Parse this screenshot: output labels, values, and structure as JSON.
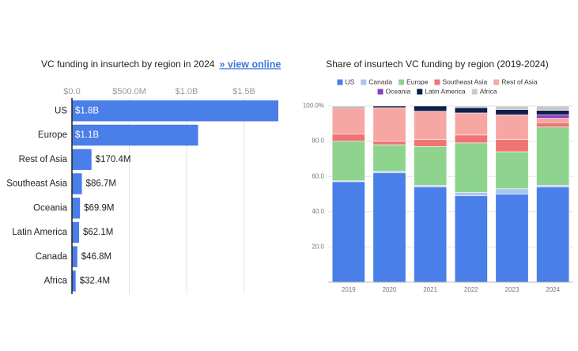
{
  "chart_data": [
    {
      "type": "hbar",
      "title": "VC funding in insurtech by region in 2024",
      "link": "» view online",
      "categories": [
        "US",
        "Europe",
        "Rest of Asia",
        "Southeast Asia",
        "Oceania",
        "Latin America",
        "Canada",
        "Africa"
      ],
      "values": [
        1800000000,
        1100000000,
        170400000,
        86700000,
        69900000,
        62100000,
        46800000,
        32400000
      ],
      "value_labels": [
        "$1.8B",
        "$1.1B",
        "$170.4M",
        "$86.7M",
        "$69.9M",
        "$62.1M",
        "$46.8M",
        "$32.4M"
      ],
      "color": "#4a7ee8",
      "xlim": [
        0,
        1800000000
      ],
      "xticks": [
        {
          "value": 0,
          "label": "$0.0"
        },
        {
          "value": 500000000,
          "label": "$500.0M"
        },
        {
          "value": 1000000000,
          "label": "$1.0B"
        },
        {
          "value": 1500000000,
          "label": "$1.5B"
        }
      ],
      "grid": true
    },
    {
      "type": "stacked_bar",
      "title": "Share of insurtech VC funding by region (2019-2024)",
      "categories": [
        "2019",
        "2020",
        "2021",
        "2022",
        "2023",
        "2024"
      ],
      "series": [
        {
          "name": "US",
          "color": "#4a7ee8",
          "values": [
            57,
            62,
            54,
            49,
            50,
            54
          ]
        },
        {
          "name": "Canada",
          "color": "#a9c5f2",
          "values": [
            0.5,
            1,
            1,
            2,
            3,
            1
          ]
        },
        {
          "name": "Europe",
          "color": "#8ed38e",
          "values": [
            22.5,
            15,
            22,
            28,
            21,
            33
          ]
        },
        {
          "name": "Southeast Asia",
          "color": "#f07474",
          "values": [
            4,
            2,
            4,
            4.5,
            7,
            2.5
          ]
        },
        {
          "name": "Rest of Asia",
          "color": "#f6a7a3",
          "values": [
            15,
            19,
            16,
            12.5,
            14,
            2.5
          ]
        },
        {
          "name": "Oceania",
          "color": "#8b3fc0",
          "values": [
            0,
            0,
            0,
            0,
            0,
            2
          ]
        },
        {
          "name": "Latin America",
          "color": "#0d1f4a",
          "values": [
            0.5,
            1,
            3,
            3,
            3,
            2.5
          ]
        },
        {
          "name": "Africa",
          "color": "#c9c9c9",
          "values": [
            0.5,
            0,
            0,
            1,
            2,
            2.5
          ]
        }
      ],
      "ylim": [
        0,
        100
      ],
      "yticks": [
        {
          "value": 20,
          "label": "20.0"
        },
        {
          "value": 40,
          "label": "40.0"
        },
        {
          "value": 60,
          "label": "60.0"
        },
        {
          "value": 80,
          "label": "80.0"
        },
        {
          "value": 100,
          "label": "100.0%"
        }
      ],
      "grid": true
    }
  ]
}
